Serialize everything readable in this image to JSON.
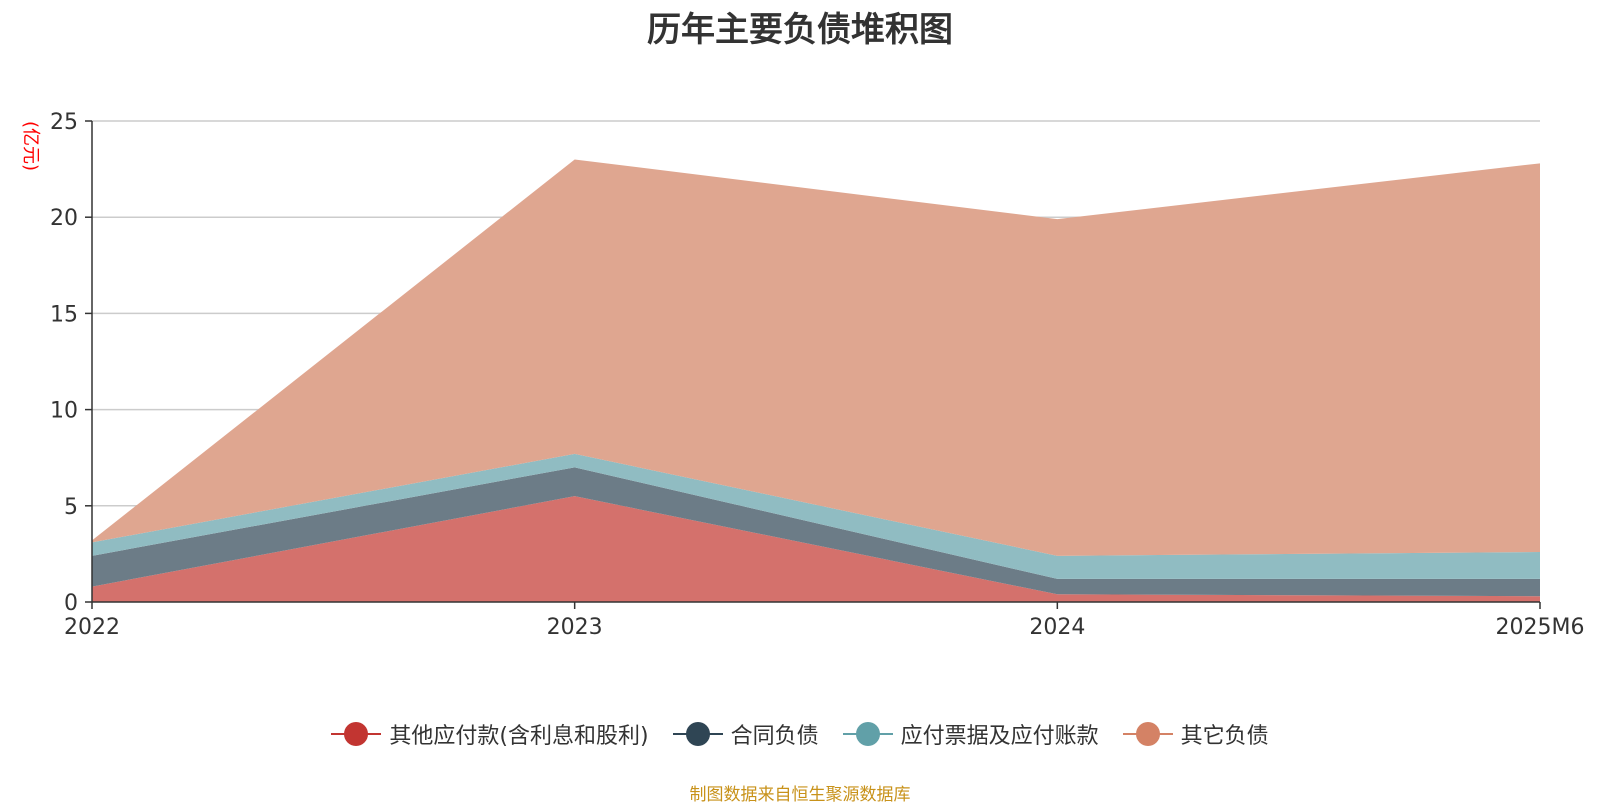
{
  "chart_data": {
    "type": "area",
    "stacked": true,
    "title": "历年主要负债堆积图",
    "ylabel": "(亿元)",
    "xlabel": "",
    "categories": [
      "2022",
      "2023",
      "2024",
      "2025M6"
    ],
    "ylim": [
      0,
      25
    ],
    "yticks": [
      0,
      5,
      10,
      15,
      20,
      25
    ],
    "grid": true,
    "legend_position": "bottom",
    "series": [
      {
        "name": "其他应付款(含利息和股利)",
        "values": [
          0.8,
          5.5,
          0.4,
          0.3
        ],
        "color": "#c23531",
        "fill": "#d4716c"
      },
      {
        "name": "合同负债",
        "values": [
          1.6,
          1.5,
          0.8,
          0.9
        ],
        "color": "#2f4554",
        "fill": "#6c7c87"
      },
      {
        "name": "应付票据及应付账款",
        "values": [
          0.7,
          0.7,
          1.2,
          1.4
        ],
        "color": "#61a0a8",
        "fill": "#90bcc2"
      },
      {
        "name": "其它负债",
        "values": [
          0.1,
          15.3,
          17.5,
          20.2
        ],
        "color": "#d48265",
        "fill": "#dfa690"
      }
    ]
  },
  "footer": {
    "source": "制图数据来自恒生聚源数据库"
  }
}
